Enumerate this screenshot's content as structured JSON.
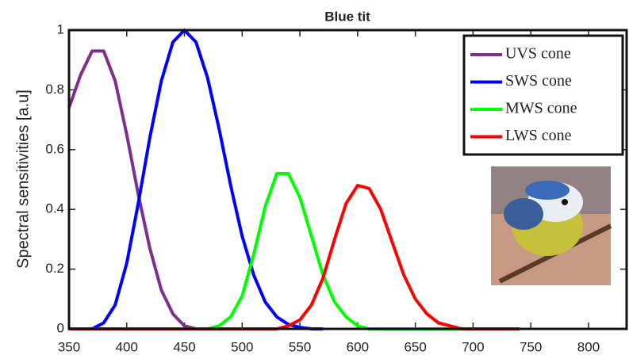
{
  "chart_data": {
    "type": "line",
    "title": "Blue tit",
    "y_label": "Spectral sensitivities [a.u]",
    "x": [
      350,
      360,
      370,
      380,
      390,
      400,
      410,
      420,
      430,
      440,
      450,
      460,
      470,
      480,
      490,
      500,
      510,
      520,
      530,
      540,
      550,
      560,
      570,
      580,
      590,
      600,
      610,
      620,
      630,
      640,
      650,
      660,
      670,
      680,
      690,
      700,
      710,
      720,
      730,
      740
    ],
    "series": [
      {
        "name": "UVS cone",
        "color": "#7e2f8e",
        "values": [
          0.74,
          0.85,
          0.93,
          0.93,
          0.83,
          0.65,
          0.45,
          0.27,
          0.13,
          0.05,
          0.01,
          0,
          0,
          null,
          null,
          null,
          null,
          null,
          null,
          null,
          null,
          null,
          null,
          null,
          null,
          null,
          null,
          null,
          null,
          null,
          null,
          null,
          null,
          null,
          null,
          null,
          null,
          null,
          null,
          null
        ]
      },
      {
        "name": "SWS cone",
        "color": "#0000ff",
        "values": [
          null,
          null,
          0,
          0.02,
          0.08,
          0.22,
          0.42,
          0.64,
          0.83,
          0.96,
          1.0,
          0.96,
          0.84,
          0.67,
          0.48,
          0.31,
          0.18,
          0.09,
          0.04,
          0.015,
          0.005,
          0,
          0,
          null,
          null,
          null,
          null,
          null,
          null,
          null,
          null,
          null,
          null,
          null,
          null,
          null,
          null,
          null,
          null,
          null
        ]
      },
      {
        "name": "MWS cone",
        "color": "#00ff00",
        "values": [
          null,
          null,
          null,
          null,
          null,
          null,
          null,
          null,
          null,
          null,
          null,
          null,
          0,
          0.01,
          0.04,
          0.11,
          0.25,
          0.41,
          0.52,
          0.52,
          0.44,
          0.31,
          0.18,
          0.09,
          0.04,
          0.01,
          0,
          0,
          0,
          0,
          0,
          0,
          0,
          0,
          0,
          0,
          0,
          0,
          0,
          0
        ]
      },
      {
        "name": "LWS cone",
        "color": "#ff0000",
        "values": [
          0,
          0,
          0,
          0,
          0,
          0,
          0,
          0,
          0,
          0,
          0,
          0,
          0,
          0,
          0,
          0,
          0,
          0,
          0,
          0.01,
          0.03,
          0.08,
          0.17,
          0.3,
          0.42,
          0.48,
          0.47,
          0.4,
          0.29,
          0.18,
          0.1,
          0.05,
          0.02,
          0.01,
          0,
          0,
          0,
          0,
          0,
          0
        ]
      }
    ],
    "xlim": [
      350,
      833
    ],
    "xticks": [
      350,
      400,
      450,
      500,
      550,
      600,
      650,
      700,
      750,
      800
    ],
    "ylim": [
      0,
      1
    ],
    "yticks": [
      0,
      0.2,
      0.4,
      0.6,
      0.8,
      1
    ],
    "grid": false,
    "legend": "upper right"
  }
}
